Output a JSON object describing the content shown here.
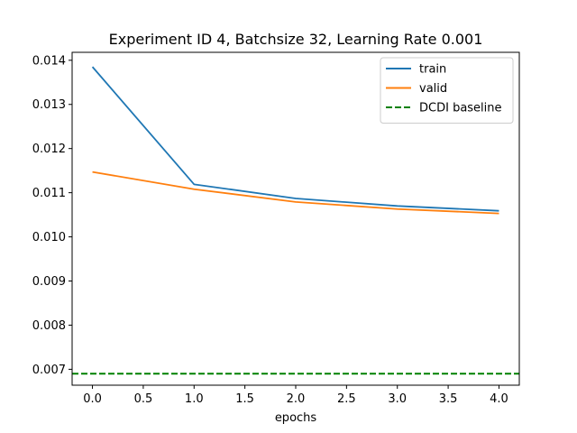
{
  "chart_data": {
    "type": "line",
    "title": "Experiment ID 4, Batchsize 32, Learning Rate 0.001",
    "xlabel": "epochs",
    "ylabel": "",
    "xlim": [
      -0.2,
      4.2
    ],
    "ylim": [
      0.00664,
      0.01418
    ],
    "xticks": [
      0.0,
      0.5,
      1.0,
      1.5,
      2.0,
      2.5,
      3.0,
      3.5,
      4.0
    ],
    "xtick_labels": [
      "0.0",
      "0.5",
      "1.0",
      "1.5",
      "2.0",
      "2.5",
      "3.0",
      "3.5",
      "4.0"
    ],
    "yticks": [
      0.007,
      0.008,
      0.009,
      0.01,
      0.011,
      0.012,
      0.013,
      0.014
    ],
    "ytick_labels": [
      "0.007",
      "0.008",
      "0.009",
      "0.010",
      "0.011",
      "0.012",
      "0.013",
      "0.014"
    ],
    "grid": false,
    "legend_position": "top-right",
    "x": [
      0,
      1,
      2,
      3,
      4
    ],
    "series": [
      {
        "name": "train",
        "values": [
          0.01385,
          0.01119,
          0.01087,
          0.0107,
          0.01059
        ],
        "color": "#1f77b4",
        "style": "solid"
      },
      {
        "name": "valid",
        "values": [
          0.01147,
          0.01108,
          0.01079,
          0.01063,
          0.01053
        ],
        "color": "#ff7f0e",
        "style": "solid"
      }
    ],
    "reference_lines": [
      {
        "name": "DCDI baseline",
        "y": 0.0069,
        "color": "#008000",
        "style": "dashed"
      }
    ]
  }
}
